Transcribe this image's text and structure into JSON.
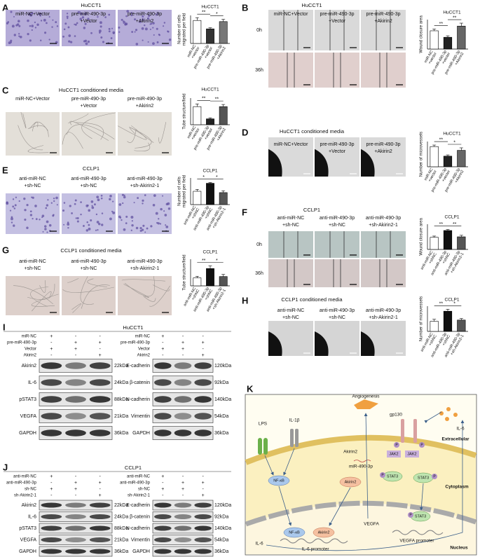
{
  "panels": [
    {
      "label": "A",
      "title": "HuCCT1",
      "headers": [
        [
          "miR-NC+Vector"
        ],
        [
          "pre-miR-490-3p",
          "+Vector"
        ],
        [
          "pre-miR-490-3p",
          "+Akirin2"
        ]
      ]
    },
    {
      "label": "B",
      "title": "HuCCT1",
      "headers": [
        [
          "miR-NC+Vector"
        ],
        [
          "pre-miR-490-3p",
          "+Vector"
        ],
        [
          "pre-miR-490-3p",
          "+Akirin2"
        ]
      ],
      "rows": [
        "0h",
        "36h"
      ]
    },
    {
      "label": "C",
      "title": "HuCCT1 conditioned media",
      "headers": [
        [
          "miR-NC+Vector"
        ],
        [
          "pre-miR-490-3p",
          "+Vector"
        ],
        [
          "pre-miR-490-3p",
          "+Akirin2"
        ]
      ]
    },
    {
      "label": "D",
      "title": "HuCCT1 conditioned media",
      "headers": [
        [
          "miR-NC+Vector"
        ],
        [
          "pre-miR-490-3p",
          "+Vector"
        ],
        [
          "pre-miR-490-3p",
          "+Akirin2"
        ]
      ]
    },
    {
      "label": "E",
      "title": "CCLP1",
      "headers": [
        [
          "anti-miR-NC",
          "+sh-NC"
        ],
        [
          "anti-miR-490-3p",
          "+sh-NC"
        ],
        [
          "anti-miR-490-3p",
          "+sh-Akirin2-1"
        ]
      ]
    },
    {
      "label": "F",
      "title": "CCLP1",
      "headers": [
        [
          "anti-miR-NC",
          "+sh-NC"
        ],
        [
          "anti-miR-490-3p",
          "+sh-NC"
        ],
        [
          "anti-miR-490-3p",
          "+sh-Akirin2-1"
        ]
      ],
      "rows": [
        "0h",
        "36h"
      ]
    },
    {
      "label": "G",
      "title": "CCLP1 conditioned media",
      "headers": [
        [
          "anti-miR-NC",
          "+sh-NC"
        ],
        [
          "anti-miR-490-3p",
          "+sh-NC"
        ],
        [
          "anti-miR-490-3p",
          "+sh-Akirin2-1"
        ]
      ]
    },
    {
      "label": "H",
      "title": "CCLP1 conditioned media",
      "headers": [
        [
          "anti-miR-NC",
          "+sh-NC"
        ],
        [
          "anti-miR-490-3p",
          "+sh-NC"
        ],
        [
          "anti-miR-490-3p",
          "+sh-Akirin2-1"
        ]
      ]
    }
  ],
  "chart_data": [
    {
      "type": "bar",
      "title": "HuCCT1",
      "ylabel": [
        "Number of cells",
        "migrated per field"
      ],
      "categories": [
        [
          "miR-NC",
          "+vector"
        ],
        [
          "pre-miR-490-3p",
          "+vector"
        ],
        [
          "pre-miR-490-3p",
          "+Akirin2"
        ]
      ],
      "values": [
        0.82,
        0.52,
        0.78
      ],
      "errors": [
        0.1,
        0.04,
        0.08
      ],
      "colors": [
        "#ffffff",
        "#333333",
        "#777777"
      ],
      "ylim": [
        0,
        1
      ],
      "significance": [
        "**",
        "*"
      ]
    },
    {
      "type": "bar",
      "title": "HuCCT1",
      "ylabel": [
        "Wound closure area"
      ],
      "categories": [
        [
          "miR-NC",
          "+vector"
        ],
        [
          "pre-miR-490-3p",
          "+vector"
        ],
        [
          "pre-miR-490-3p",
          "+Akirin2"
        ]
      ],
      "values": [
        0.62,
        0.4,
        0.78
      ],
      "errors": [
        0.06,
        0.05,
        0.1
      ],
      "colors": [
        "#ffffff",
        "#222222",
        "#666666"
      ],
      "ylim": [
        0,
        1
      ],
      "significance": [
        "**",
        "**"
      ]
    },
    {
      "type": "bar",
      "title": "HuCCT1",
      "ylabel": [
        "Tube structure/field"
      ],
      "categories": [
        [
          "miR-NC",
          "+vector"
        ],
        [
          "pre-miR-490-3p",
          "+vector"
        ],
        [
          "pre-miR-490-3p",
          "+Akirin2"
        ]
      ],
      "values": [
        0.68,
        0.22,
        0.68
      ],
      "errors": [
        0.1,
        0.04,
        0.08
      ],
      "colors": [
        "#ffffff",
        "#222222",
        "#555555"
      ],
      "ylim": [
        0,
        1
      ],
      "significance": [
        "**",
        "**"
      ]
    },
    {
      "type": "bar",
      "title": "HuCCT1",
      "ylabel": [
        "Number of microvessels"
      ],
      "categories": [
        [
          "miR-NC",
          "+vector"
        ],
        [
          "pre-miR-490-3p",
          "+vector"
        ],
        [
          "pre-miR-490-3p",
          "+Akirin2"
        ]
      ],
      "values": [
        0.8,
        0.42,
        0.65
      ],
      "errors": [
        0.06,
        0.05,
        0.1
      ],
      "colors": [
        "#ffffff",
        "#222222",
        "#666666"
      ],
      "ylim": [
        0,
        1
      ],
      "significance": [
        "**",
        "*"
      ]
    },
    {
      "type": "bar",
      "title": "CCLP1",
      "ylabel": [
        "Number of cells",
        "migrated per field"
      ],
      "categories": [
        [
          "anti-miR-NC",
          "+shNC"
        ],
        [
          "anti-miR-490-3p",
          "+shNC"
        ],
        [
          "anti-miR-490-3p",
          "+sh-Akirin2-1"
        ]
      ],
      "values": [
        0.5,
        0.8,
        0.45
      ],
      "errors": [
        0.07,
        0.03,
        0.07
      ],
      "colors": [
        "#ffffff",
        "#111111",
        "#555555"
      ],
      "ylim": [
        0,
        1
      ],
      "significance": [
        "*",
        "*"
      ]
    },
    {
      "type": "bar",
      "title": "CCLP1",
      "ylabel": [
        "Wound closure area"
      ],
      "categories": [
        [
          "anti-miR-NC",
          "+shNC"
        ],
        [
          "anti-miR-490-3p",
          "+shNC"
        ],
        [
          "anti-miR-490-3p",
          "+sh-Akirin2-1"
        ]
      ],
      "values": [
        0.48,
        0.75,
        0.5
      ],
      "errors": [
        0.05,
        0.04,
        0.06
      ],
      "colors": [
        "#ffffff",
        "#111111",
        "#555555"
      ],
      "ylim": [
        0,
        1
      ],
      "significance": [
        "**",
        "**"
      ]
    },
    {
      "type": "bar",
      "title": "CCLP1",
      "ylabel": [
        "Tube structure/field"
      ],
      "categories": [
        [
          "anti-miR-NC",
          "+shNC"
        ],
        [
          "anti-miR-490-3p",
          "+shNC"
        ],
        [
          "anti-miR-490-3p",
          "+sh-Akirin2-1"
        ]
      ],
      "values": [
        0.3,
        0.65,
        0.35
      ],
      "errors": [
        0.06,
        0.1,
        0.08
      ],
      "colors": [
        "#ffffff",
        "#111111",
        "#555555"
      ],
      "ylim": [
        0,
        1
      ],
      "significance": [
        "**",
        "*"
      ]
    },
    {
      "type": "bar",
      "title": "CCLP1",
      "ylabel": [
        "Number of microvessels"
      ],
      "categories": [
        [
          "anti-miR-NC",
          "+shNC"
        ],
        [
          "anti-miR-490-3p",
          "+shNC"
        ],
        [
          "anti-miR-490-3p",
          "+sh-Akirin2-1"
        ]
      ],
      "values": [
        0.4,
        0.8,
        0.45
      ],
      "errors": [
        0.08,
        0.08,
        0.06
      ],
      "colors": [
        "#ffffff",
        "#111111",
        "#555555"
      ],
      "ylim": [
        0,
        1
      ],
      "significance": [
        "**",
        "*"
      ]
    }
  ],
  "blots": [
    {
      "label": "I",
      "title": "HuCCT1",
      "conditions": [
        {
          "name": "miR-NC",
          "signs": [
            "+",
            "-",
            "-"
          ]
        },
        {
          "name": "pre-miR-490-3p",
          "signs": [
            "-",
            "+",
            "+"
          ]
        },
        {
          "name": "Vector",
          "signs": [
            "+",
            "+",
            "-"
          ]
        },
        {
          "name": "Akirin2",
          "signs": [
            "-",
            "-",
            "+"
          ]
        }
      ],
      "left_rows": [
        {
          "protein": "Akirin2",
          "size": "22kDa"
        },
        {
          "protein": "IL-6",
          "size": "24kDa"
        },
        {
          "protein": "pSTAT3",
          "size": "88kDa"
        },
        {
          "protein": "VEGFA",
          "size": "21kDa"
        },
        {
          "protein": "GAPDH",
          "size": "36kDa"
        }
      ],
      "right_rows": [
        {
          "protein": "E-cadherin",
          "size": "120kDa"
        },
        {
          "protein": "β-catenin",
          "size": "92kDa"
        },
        {
          "protein": "N-cadherin",
          "size": "140kDa"
        },
        {
          "protein": "Vimentin",
          "size": "54kDa"
        },
        {
          "protein": "GAPDH",
          "size": "36kDa"
        }
      ]
    },
    {
      "label": "J",
      "title": "CCLP1",
      "conditions": [
        {
          "name": "anti-miR-NC",
          "signs": [
            "+",
            "-",
            "-"
          ]
        },
        {
          "name": "anti-miR-490-3p",
          "signs": [
            "-",
            "+",
            "+"
          ]
        },
        {
          "name": "sh-NC",
          "signs": [
            "+",
            "+",
            "-"
          ]
        },
        {
          "name": "sh-Akirin2-1",
          "signs": [
            "-",
            "-",
            "+"
          ]
        }
      ],
      "left_rows": [
        {
          "protein": "Akirin2",
          "size": "22kDa"
        },
        {
          "protein": "IL-6",
          "size": "24kDa"
        },
        {
          "protein": "pSTAT3",
          "size": "88kDa"
        },
        {
          "protein": "VEGFA",
          "size": "21kDa"
        },
        {
          "protein": "GAPDH",
          "size": "36kDa"
        }
      ],
      "right_rows": [
        {
          "protein": "E-cadherin",
          "size": "120kDa"
        },
        {
          "protein": "β-catenin",
          "size": "92kDa"
        },
        {
          "protein": "N-cadherin",
          "size": "140kDa"
        },
        {
          "protein": "Vimentin",
          "size": "54kDa"
        },
        {
          "protein": "GAPDH",
          "size": "36kDa"
        }
      ]
    }
  ],
  "diagram": {
    "label": "K",
    "lps": "LPS",
    "il1b": "IL-1β",
    "angiogenesis": "Angiogenesis",
    "gp130": "gp130",
    "il6_out": "IL-6",
    "extracellular": "Extracellular",
    "akirin2_mirna": "Akirin2",
    "mirna": "miR-490-3p",
    "nfkb_cyto": "NF-κB",
    "akirin2_cyto": "Akirin2",
    "jak2_a": "JAK2",
    "jak2_b": "JAK2",
    "stat3_a": "STAT3",
    "stat3_b": "STAT3",
    "cytoplasm": "Cytoplasm",
    "stat3_nuc": "STAT3",
    "vegfa": "VEGFA",
    "nfkb_nuc": "NF-κB",
    "akirin2_nuc": "Akirin2",
    "il6_nuc": "IL-6",
    "il6_promoter": "IL-6 promoter",
    "vegfa_promoter": "VEGFA promoter",
    "nucleus": "Nucleus",
    "p": [
      "P",
      "P",
      "P",
      "P",
      "P"
    ]
  }
}
